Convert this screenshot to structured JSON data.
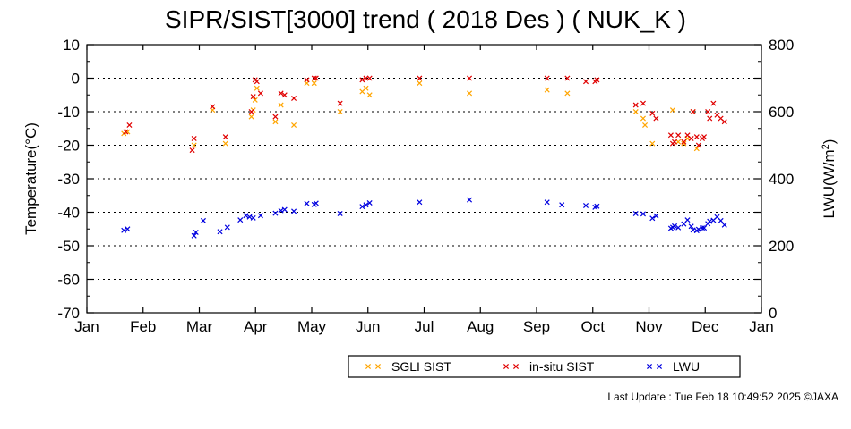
{
  "chart_data": {
    "type": "scatter",
    "title": "SIPR/SIST[3000] trend ( 2018 Des ) ( NUK_K )",
    "ylabel": "Temperature(°C)",
    "y2label_main": "LWU(W/m",
    "y2label_sup": "2",
    "y2label_end": ")",
    "ylim": [
      -70,
      10
    ],
    "y2lim": [
      0,
      800
    ],
    "yticks": [
      "10",
      "0",
      "-10",
      "-20",
      "-30",
      "-40",
      "-50",
      "-60",
      "-70"
    ],
    "y2ticks": [
      "800",
      "600",
      "400",
      "200",
      "0"
    ],
    "xticks": [
      "Jan",
      "Feb",
      "Mar",
      "Apr",
      "May",
      "Jun",
      "Jul",
      "Aug",
      "Sep",
      "Oct",
      "Nov",
      "Dec",
      "Jan"
    ],
    "grid": "horizontal dotted",
    "legend_position": "bottom",
    "series": [
      {
        "name": "SGLI SIST",
        "color": "#FFA500",
        "axis": "left",
        "points": [
          [
            "2018-01-21",
            -16.5
          ],
          [
            "2018-01-23",
            -16
          ],
          [
            "2018-02-28",
            -20
          ],
          [
            "2018-03-10",
            -9.5
          ],
          [
            "2018-03-17",
            -19.5
          ],
          [
            "2018-03-31",
            -11.5
          ],
          [
            "2018-04-01",
            -9.5
          ],
          [
            "2018-04-02",
            -6.5
          ],
          [
            "2018-04-03",
            -3
          ],
          [
            "2018-04-13",
            -13
          ],
          [
            "2018-04-16",
            -8
          ],
          [
            "2018-04-23",
            -14
          ],
          [
            "2018-04-30",
            -1.5
          ],
          [
            "2018-05-04",
            -1.5
          ],
          [
            "2018-05-18",
            -10
          ],
          [
            "2018-05-30",
            -4
          ],
          [
            "2018-06-01",
            -3
          ],
          [
            "2018-06-03",
            -5
          ],
          [
            "2018-06-30",
            -1.5
          ],
          [
            "2018-07-27",
            -4.5
          ],
          [
            "2018-09-07",
            -3.5
          ],
          [
            "2018-09-18",
            -4.5
          ],
          [
            "2018-10-25",
            -10
          ],
          [
            "2018-10-29",
            -12
          ],
          [
            "2018-10-30",
            -14
          ],
          [
            "2018-11-03",
            -19.5
          ],
          [
            "2018-11-14",
            -9.5
          ],
          [
            "2018-11-17",
            -19
          ],
          [
            "2018-11-20",
            -19.5
          ],
          [
            "2018-11-22",
            -18
          ],
          [
            "2018-11-25",
            -10
          ],
          [
            "2018-11-27",
            -21
          ]
        ]
      },
      {
        "name": "in-situ SIST",
        "color": "#E00000",
        "axis": "left",
        "points": [
          [
            "2018-01-22",
            -16
          ],
          [
            "2018-01-24",
            -14
          ],
          [
            "2018-02-27",
            -21.5
          ],
          [
            "2018-02-28",
            -18
          ],
          [
            "2018-03-10",
            -8.5
          ],
          [
            "2018-03-17",
            -17.5
          ],
          [
            "2018-03-31",
            -10
          ],
          [
            "2018-04-01",
            -5.5
          ],
          [
            "2018-04-02",
            -0.5
          ],
          [
            "2018-04-03",
            -1
          ],
          [
            "2018-04-05",
            -4.5
          ],
          [
            "2018-04-13",
            -11.5
          ],
          [
            "2018-04-16",
            -4.5
          ],
          [
            "2018-04-18",
            -5
          ],
          [
            "2018-04-23",
            -6
          ],
          [
            "2018-04-30",
            -0.5
          ],
          [
            "2018-05-04",
            0
          ],
          [
            "2018-05-05",
            0
          ],
          [
            "2018-05-18",
            -7.5
          ],
          [
            "2018-05-30",
            -0.5
          ],
          [
            "2018-06-01",
            0
          ],
          [
            "2018-06-03",
            0
          ],
          [
            "2018-06-30",
            0
          ],
          [
            "2018-07-27",
            0
          ],
          [
            "2018-09-07",
            0
          ],
          [
            "2018-09-18",
            0
          ],
          [
            "2018-09-28",
            -1
          ],
          [
            "2018-10-03",
            -1
          ],
          [
            "2018-10-04",
            -0.5
          ],
          [
            "2018-10-25",
            -8
          ],
          [
            "2018-10-29",
            -7.5
          ],
          [
            "2018-11-03",
            -10.5
          ],
          [
            "2018-11-05",
            -12
          ],
          [
            "2018-11-13",
            -17
          ],
          [
            "2018-11-14",
            -19.5
          ],
          [
            "2018-11-15",
            -19
          ],
          [
            "2018-11-17",
            -17
          ],
          [
            "2018-11-20",
            -19
          ],
          [
            "2018-11-22",
            -17
          ],
          [
            "2018-11-24",
            -18
          ],
          [
            "2018-11-25",
            -10
          ],
          [
            "2018-11-27",
            -17.5
          ],
          [
            "2018-11-28",
            -20
          ],
          [
            "2018-11-30",
            -18
          ],
          [
            "2018-12-01",
            -17.5
          ],
          [
            "2018-12-03",
            -10
          ],
          [
            "2018-12-04",
            -12
          ],
          [
            "2018-12-06",
            -7.5
          ],
          [
            "2018-12-08",
            -11
          ],
          [
            "2018-12-10",
            -12
          ],
          [
            "2018-12-12",
            -13
          ]
        ]
      },
      {
        "name": "LWU",
        "color": "#0000E0",
        "axis": "right",
        "points": [
          [
            "2018-01-21",
            246
          ],
          [
            "2018-01-23",
            250
          ],
          [
            "2018-02-28",
            230
          ],
          [
            "2018-03-01",
            240
          ],
          [
            "2018-03-05",
            275
          ],
          [
            "2018-03-14",
            242
          ],
          [
            "2018-03-18",
            255
          ],
          [
            "2018-03-25",
            277
          ],
          [
            "2018-03-28",
            290
          ],
          [
            "2018-03-30",
            286
          ],
          [
            "2018-04-01",
            283
          ],
          [
            "2018-04-05",
            290
          ],
          [
            "2018-04-13",
            297
          ],
          [
            "2018-04-16",
            305
          ],
          [
            "2018-04-18",
            308
          ],
          [
            "2018-04-23",
            303
          ],
          [
            "2018-04-30",
            326
          ],
          [
            "2018-05-04",
            323
          ],
          [
            "2018-05-05",
            327
          ],
          [
            "2018-05-18",
            296
          ],
          [
            "2018-05-30",
            317
          ],
          [
            "2018-06-01",
            322
          ],
          [
            "2018-06-03",
            328
          ],
          [
            "2018-06-30",
            330
          ],
          [
            "2018-07-27",
            337
          ],
          [
            "2018-09-07",
            330
          ],
          [
            "2018-09-15",
            322
          ],
          [
            "2018-09-28",
            320
          ],
          [
            "2018-10-03",
            315
          ],
          [
            "2018-10-04",
            318
          ],
          [
            "2018-10-25",
            296
          ],
          [
            "2018-10-29",
            295
          ],
          [
            "2018-11-03",
            282
          ],
          [
            "2018-11-05",
            289
          ],
          [
            "2018-11-13",
            252
          ],
          [
            "2018-11-14",
            255
          ],
          [
            "2018-11-15",
            259
          ],
          [
            "2018-11-17",
            254
          ],
          [
            "2018-11-20",
            265
          ],
          [
            "2018-11-22",
            277
          ],
          [
            "2018-11-24",
            258
          ],
          [
            "2018-11-25",
            247
          ],
          [
            "2018-11-27",
            245
          ],
          [
            "2018-11-28",
            249
          ],
          [
            "2018-11-30",
            253
          ],
          [
            "2018-12-01",
            253
          ],
          [
            "2018-12-03",
            266
          ],
          [
            "2018-12-04",
            273
          ],
          [
            "2018-12-06",
            276
          ],
          [
            "2018-12-08",
            286
          ],
          [
            "2018-12-10",
            275
          ],
          [
            "2018-12-12",
            262
          ]
        ]
      }
    ]
  },
  "footer": "Last Update : Tue Feb 18 10:49:52 2025  ©JAXA"
}
